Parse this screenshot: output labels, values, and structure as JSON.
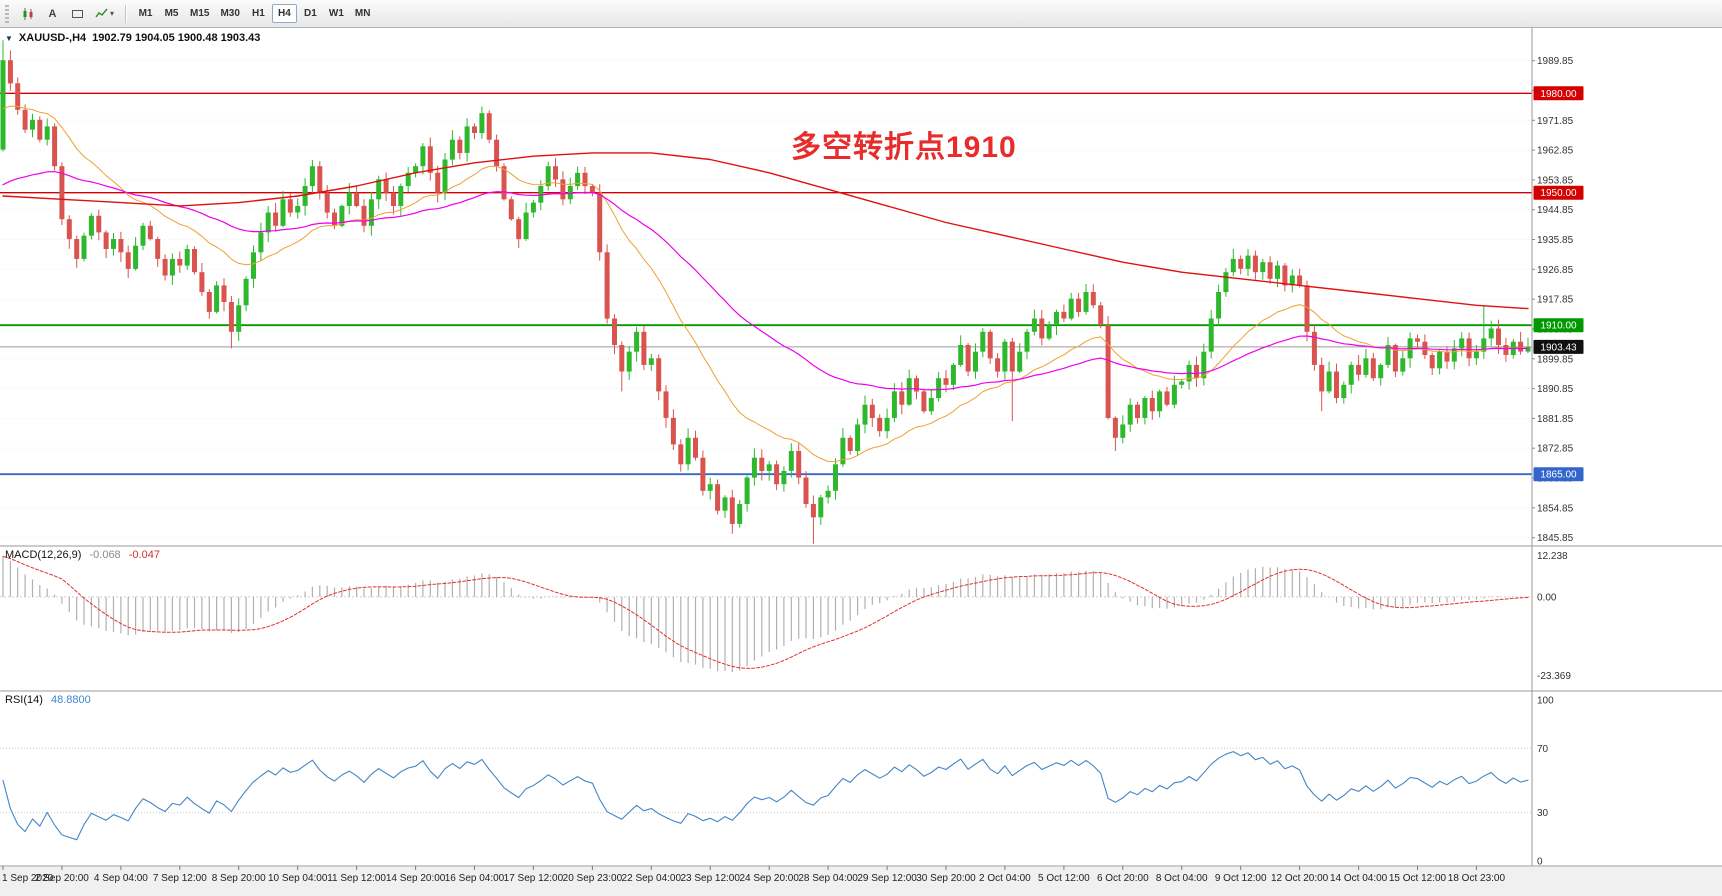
{
  "icons": {
    "collapse_triangle": "▼",
    "dropdown_caret": "▾",
    "letter_tool": "A"
  },
  "toolbar": {
    "timeframes": [
      "M1",
      "M5",
      "M15",
      "M30",
      "H1",
      "H4",
      "D1",
      "W1",
      "MN"
    ],
    "active_timeframe": "H4"
  },
  "chart": {
    "symbol_period": "XAUUSD-,H4",
    "ohlc": "1902.79 1904.05 1900.48 1903.43",
    "annotation": "多空转折点1910",
    "annotation_color": "#e82c2c"
  },
  "macd": {
    "label": "MACD(12,26,9)",
    "main_value": "-0.068",
    "signal_value": "-0.047",
    "ticks": [
      "12.238",
      "0.00",
      "-23.369"
    ],
    "tick_values": [
      12.238,
      0,
      -23.369
    ]
  },
  "rsi": {
    "label": "RSI(14)",
    "value": "48.8800",
    "ticks": [
      "100",
      "70",
      "30",
      "0"
    ],
    "tick_values": [
      100,
      70,
      30,
      0
    ],
    "levels": [
      70,
      30
    ]
  },
  "price_axis": {
    "tick_values": [
      1989.85,
      1980.85,
      1971.85,
      1962.85,
      1953.85,
      1944.85,
      1935.85,
      1926.85,
      1917.85,
      1908.85,
      1899.85,
      1890.85,
      1881.85,
      1872.85,
      1863.85,
      1854.85,
      1845.85
    ]
  },
  "time_axis": {
    "labels": [
      "1 Sep 2020",
      "2 Sep 20:00",
      "4 Sep 04:00",
      "7 Sep 12:00",
      "8 Sep 20:00",
      "10 Sep 04:00",
      "11 Sep 12:00",
      "14 Sep 20:00",
      "16 Sep 04:00",
      "17 Sep 12:00",
      "20 Sep 23:00",
      "22 Sep 04:00",
      "23 Sep 12:00",
      "24 Sep 20:00",
      "28 Sep 04:00",
      "29 Sep 12:00",
      "30 Sep 20:00",
      "2 Oct 04:00",
      "5 Oct 12:00",
      "6 Oct 20:00",
      "8 Oct 04:00",
      "9 Oct 12:00",
      "12 Oct 20:00",
      "14 Oct 04:00",
      "15 Oct 12:00",
      "18 Oct 23:00"
    ],
    "candles_per_label": 8
  },
  "chart_data": {
    "type": "candlestick",
    "symbol": "XAUUSD-",
    "timeframe": "H4",
    "title": "XAUUSD-,H4 1902.79 1904.05 1900.48 1903.43",
    "style": {
      "bull": "#2db82d",
      "bear": "#d9534f",
      "grid": "#ebebeb"
    },
    "horizontal_lines": [
      {
        "name": "resistance-line-1980",
        "value": 1980.0,
        "label": "1980.00",
        "color": "#d40000",
        "width": 1.4
      },
      {
        "name": "resistance-line-1950",
        "value": 1950.0,
        "label": "1950.00",
        "color": "#d40000",
        "width": 1.4
      },
      {
        "name": "pivot-line-1910",
        "value": 1910.0,
        "label": "1910.00",
        "color": "#009a00",
        "width": 1.8
      },
      {
        "name": "support-line-1865",
        "value": 1865.0,
        "label": "1865.00",
        "color": "#3366cc",
        "width": 1.8
      },
      {
        "name": "current-price-line",
        "value": 1903.43,
        "label": "1903.43",
        "color": "#101010",
        "line_color": "#9a9a9a",
        "width": 1
      }
    ],
    "candles": {
      "first_open": 1963,
      "closes": [
        1990,
        1983,
        1975,
        1969,
        1972,
        1966,
        1970,
        1958,
        1942,
        1936,
        1930,
        1937,
        1943,
        1938,
        1933,
        1936,
        1932,
        1927,
        1934,
        1940,
        1936,
        1930,
        1925,
        1930,
        1928,
        1933,
        1926,
        1920,
        1914,
        1922,
        1917,
        1908,
        1916,
        1924,
        1932,
        1938,
        1944,
        1940,
        1948,
        1944,
        1946,
        1952,
        1958,
        1950,
        1944,
        1940,
        1946,
        1950,
        1946,
        1940,
        1948,
        1954,
        1950,
        1946,
        1952,
        1956,
        1958,
        1964,
        1956,
        1950,
        1960,
        1966,
        1962,
        1970,
        1968,
        1974,
        1966,
        1958,
        1948,
        1942,
        1936,
        1944,
        1947,
        1952,
        1958,
        1954,
        1948,
        1952,
        1956,
        1952,
        1950,
        1932,
        1912,
        1904,
        1896,
        1902,
        1908,
        1898,
        1900,
        1890,
        1882,
        1874,
        1868,
        1876,
        1870,
        1860,
        1862,
        1854,
        1858,
        1850,
        1856,
        1864,
        1870,
        1866,
        1868,
        1862,
        1866,
        1872,
        1864,
        1856,
        1852,
        1858,
        1860,
        1868,
        1876,
        1872,
        1880,
        1886,
        1882,
        1878,
        1882,
        1890,
        1886,
        1894,
        1890,
        1884,
        1888,
        1894,
        1892,
        1898,
        1904,
        1896,
        1902,
        1908,
        1900,
        1896,
        1905,
        1896,
        1902,
        1908,
        1912,
        1906,
        1910,
        1914,
        1912,
        1918,
        1914,
        1920,
        1916,
        1910,
        1882,
        1876,
        1880,
        1886,
        1882,
        1888,
        1884,
        1890,
        1886,
        1892,
        1893,
        1898,
        1894,
        1902,
        1912,
        1920,
        1926,
        1930,
        1927,
        1931,
        1926,
        1929,
        1924,
        1928,
        1922,
        1925,
        1922,
        1908,
        1898,
        1890,
        1896,
        1888,
        1892,
        1898,
        1895,
        1900,
        1894,
        1898,
        1904,
        1896,
        1900,
        1906,
        1905,
        1901,
        1897,
        1902,
        1899,
        1903,
        1906,
        1900,
        1902,
        1906,
        1909,
        1904,
        1901,
        1905,
        1902,
        1903.43
      ],
      "wick_overrides": {
        "0": [
          1996,
          null
        ],
        "31": [
          null,
          1903
        ],
        "65": [
          1976,
          null
        ],
        "84": [
          null,
          1890
        ],
        "99": [
          null,
          1847
        ],
        "110": [
          null,
          1844
        ],
        "137": [
          null,
          1881
        ],
        "151": [
          null,
          1872
        ],
        "167": [
          1933,
          null
        ],
        "179": [
          null,
          1884
        ],
        "201": [
          1916,
          null
        ]
      }
    },
    "overlays": {
      "fast_ma": {
        "type": "ema",
        "period": 21,
        "seed": 1974,
        "color": "#f0a030",
        "width": 1
      },
      "mid_ma": {
        "type": "ema",
        "period": 55,
        "seed": 1951,
        "color": "#ee00ee",
        "width": 1.2
      },
      "slow_ma": {
        "type": "anchors",
        "color": "#e01010",
        "width": 1.4,
        "points": [
          [
            0,
            1949
          ],
          [
            8,
            1948
          ],
          [
            16,
            1947
          ],
          [
            24,
            1946
          ],
          [
            32,
            1947
          ],
          [
            40,
            1949
          ],
          [
            48,
            1952
          ],
          [
            56,
            1956
          ],
          [
            64,
            1959
          ],
          [
            72,
            1961
          ],
          [
            80,
            1962
          ],
          [
            88,
            1962
          ],
          [
            96,
            1960
          ],
          [
            104,
            1956
          ],
          [
            112,
            1951
          ],
          [
            120,
            1946
          ],
          [
            128,
            1941
          ],
          [
            136,
            1937
          ],
          [
            144,
            1933
          ],
          [
            152,
            1929
          ],
          [
            160,
            1926
          ],
          [
            168,
            1924
          ],
          [
            176,
            1922
          ],
          [
            184,
            1920
          ],
          [
            192,
            1918
          ],
          [
            200,
            1916
          ],
          [
            207,
            1915
          ]
        ]
      }
    },
    "indicators": [
      {
        "name": "MACD",
        "params": "12,26,9",
        "main_value": -0.068,
        "signal_value": -0.047,
        "hist_color": "#b0b0b0",
        "signal_color": "#e03030"
      },
      {
        "name": "RSI",
        "params": "14",
        "value": 48.88,
        "color": "#4285c8",
        "levels": [
          70,
          30
        ]
      }
    ]
  }
}
